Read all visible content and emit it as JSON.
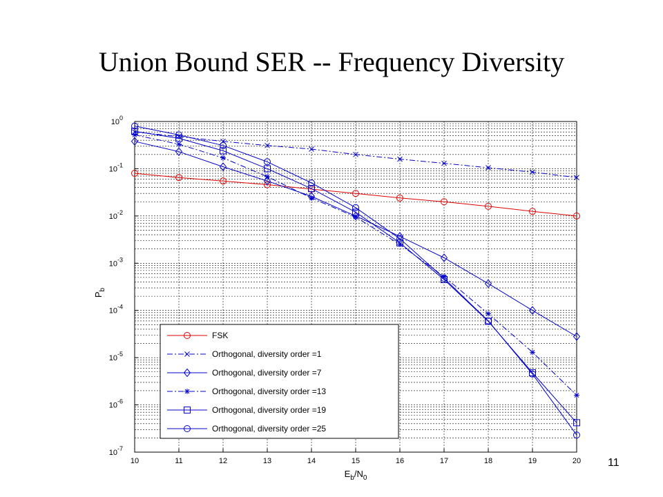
{
  "slide": {
    "title": "Union Bound SER -- Frequency Diversity",
    "page_number": "11"
  },
  "colors": {
    "red": "#e00000",
    "blue": "#0000cc",
    "grid": "#000000"
  },
  "chart_data": {
    "type": "line",
    "title": "",
    "x_label_main": "E",
    "x_label_sub1": "b",
    "x_label_mid": "/N",
    "x_label_sub2": "0",
    "y_label_main": "P",
    "y_label_sub": "b",
    "y_scale": "log",
    "xlim": [
      10,
      20
    ],
    "ylim": [
      1e-07,
      1
    ],
    "x_ticks": [
      "10",
      "11",
      "12",
      "13",
      "14",
      "15",
      "16",
      "17",
      "18",
      "19",
      "20"
    ],
    "y_ticks": [
      {
        "base": "10",
        "exp": "0",
        "value": 1
      },
      {
        "base": "10",
        "exp": "-1",
        "value": 0.1
      },
      {
        "base": "10",
        "exp": "-2",
        "value": 0.01
      },
      {
        "base": "10",
        "exp": "-3",
        "value": 0.001
      },
      {
        "base": "10",
        "exp": "-4",
        "value": 0.0001
      },
      {
        "base": "10",
        "exp": "-5",
        "value": 1e-05
      },
      {
        "base": "10",
        "exp": "-6",
        "value": 1e-06
      },
      {
        "base": "10",
        "exp": "-7",
        "value": 1e-07
      }
    ],
    "grid": true,
    "legend_position": "bottom-left",
    "x": [
      10,
      11,
      12,
      13,
      14,
      15,
      16,
      17,
      18,
      19,
      20
    ],
    "series": [
      {
        "name": "FSK",
        "color": "#e00000",
        "marker": "circle",
        "dash": "solid",
        "values": [
          0.08,
          0.065,
          0.055,
          0.046,
          0.037,
          0.03,
          0.024,
          0.02,
          0.016,
          0.0125,
          0.01
        ]
      },
      {
        "name": "Orthogonal, diversity order =1",
        "color": "#0000cc",
        "marker": "x",
        "dash": "dashdot",
        "values": [
          0.6,
          0.48,
          0.38,
          0.31,
          0.26,
          0.2,
          0.16,
          0.13,
          0.105,
          0.085,
          0.065
        ]
      },
      {
        "name": "Orthogonal, diversity order =7",
        "color": "#0000cc",
        "marker": "diamond",
        "dash": "solid",
        "values": [
          0.38,
          0.23,
          0.11,
          0.055,
          0.026,
          0.01,
          0.0037,
          0.0013,
          0.00037,
          0.0001,
          2.8e-05
        ]
      },
      {
        "name": "Orthogonal, diversity order =13",
        "color": "#0000cc",
        "marker": "star",
        "dash": "dashdot",
        "values": [
          0.52,
          0.33,
          0.17,
          0.068,
          0.024,
          0.0095,
          0.0025,
          0.00052,
          8.5e-05,
          1.3e-05,
          1.6e-06
        ]
      },
      {
        "name": "Orthogonal, diversity order =19",
        "color": "#0000cc",
        "marker": "square",
        "dash": "solid",
        "values": [
          0.62,
          0.44,
          0.24,
          0.1,
          0.038,
          0.012,
          0.0027,
          0.00045,
          5.9e-05,
          4.8e-06,
          4.2e-07
        ]
      },
      {
        "name": "Orthogonal, diversity order =25",
        "color": "#0000cc",
        "marker": "circle",
        "dash": "solid",
        "values": [
          0.8,
          0.52,
          0.31,
          0.14,
          0.05,
          0.015,
          0.0033,
          0.00048,
          6e-05,
          4.5e-06,
          2.3e-07
        ]
      }
    ]
  }
}
